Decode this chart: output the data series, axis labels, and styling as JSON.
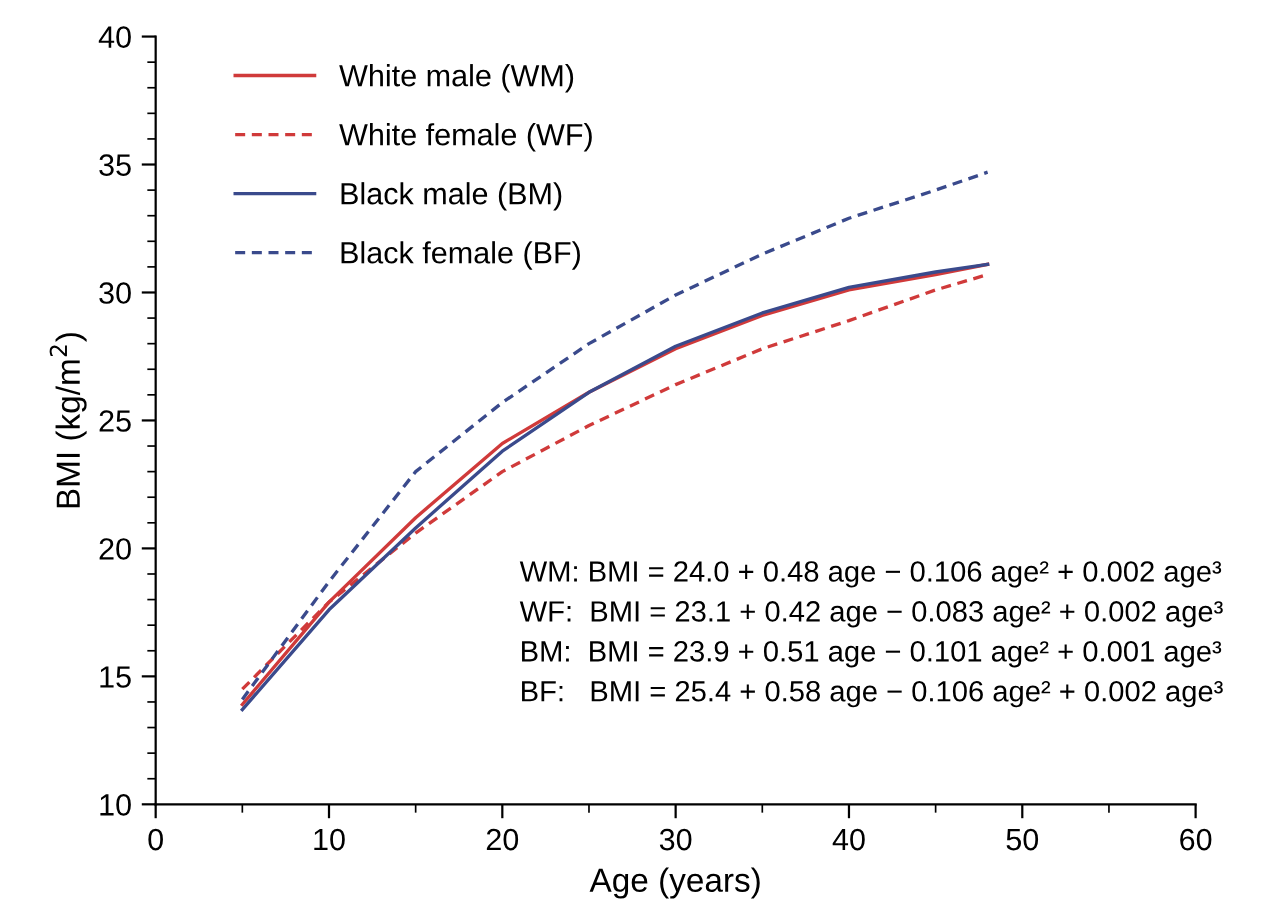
{
  "chart_data": {
    "type": "line",
    "xlabel": "Age (years)",
    "ylabel": "BMI (kg/m$^{2}$)",
    "x": [
      5,
      10,
      15,
      20,
      25,
      30,
      35,
      40,
      45,
      48
    ],
    "series": [
      {
        "name": "White male (WM)",
        "color": "#d03a3a",
        "line_style": "solid",
        "values": [
          13.9,
          17.9,
          21.2,
          24.1,
          26.1,
          27.8,
          29.1,
          30.1,
          30.7,
          31.1
        ]
      },
      {
        "name": "White female (WF)",
        "color": "#d03a3a",
        "line_style": "dashed",
        "values": [
          14.5,
          17.9,
          20.6,
          23.0,
          24.8,
          26.4,
          27.8,
          28.9,
          30.1,
          30.7
        ]
      },
      {
        "name": "Black male (BM)",
        "color": "#3a4a8c",
        "line_style": "solid",
        "values": [
          13.7,
          17.6,
          20.8,
          23.8,
          26.1,
          27.9,
          29.2,
          30.2,
          30.8,
          31.1
        ]
      },
      {
        "name": "Black female (BF)",
        "color": "#3a4a8c",
        "line_style": "dashed",
        "values": [
          14.1,
          18.7,
          23.0,
          25.7,
          28.0,
          29.9,
          31.5,
          32.9,
          34.0,
          34.7
        ]
      }
    ],
    "xlim": [
      0,
      60
    ],
    "ylim": [
      10,
      40
    ],
    "xticks": [
      0,
      {
        "value": 5,
        "label": null
      },
      10,
      {
        "value": 15,
        "label": null
      },
      20,
      {
        "value": 25,
        "label": null
      },
      30,
      {
        "value": 35,
        "label": null
      },
      40,
      {
        "value": 45,
        "label": null
      },
      50,
      {
        "value": 55,
        "label": null
      },
      60
    ],
    "yticks": [
      10,
      {
        "value": 11,
        "label": null
      },
      {
        "value": 12,
        "label": null
      },
      {
        "value": 13,
        "label": null
      },
      {
        "value": 14,
        "label": null
      },
      15,
      {
        "value": 16,
        "label": null
      },
      {
        "value": 17,
        "label": null
      },
      {
        "value": 18,
        "label": null
      },
      {
        "value": 19,
        "label": null
      },
      20,
      {
        "value": 21,
        "label": null
      },
      {
        "value": 22,
        "label": null
      },
      {
        "value": 23,
        "label": null
      },
      {
        "value": 24,
        "label": null
      },
      25,
      {
        "value": 26,
        "label": null
      },
      {
        "value": 27,
        "label": null
      },
      {
        "value": 28,
        "label": null
      },
      {
        "value": 29,
        "label": null
      },
      30,
      {
        "value": 31,
        "label": null
      },
      {
        "value": 32,
        "label": null
      },
      {
        "value": 33,
        "label": null
      },
      {
        "value": 34,
        "label": null
      },
      35,
      {
        "value": 36,
        "label": null
      },
      {
        "value": 37,
        "label": null
      },
      {
        "value": 38,
        "label": null
      },
      {
        "value": 39,
        "label": null
      },
      40
    ],
    "grid": false,
    "legend": "top left",
    "marker": "none",
    "annotations": [
      "WM: BMI = 24.0 + 0.48 age − 0.106 age² + 0.002 age³",
      "WF:  BMI = 23.1 + 0.42 age − 0.083 age² + 0.002 age³",
      "BM:  BMI = 23.9 + 0.51 age − 0.101 age² + 0.001 age³",
      "BF:   BMI = 25.4 + 0.58 age − 0.106 age² + 0.002 age³"
    ]
  }
}
